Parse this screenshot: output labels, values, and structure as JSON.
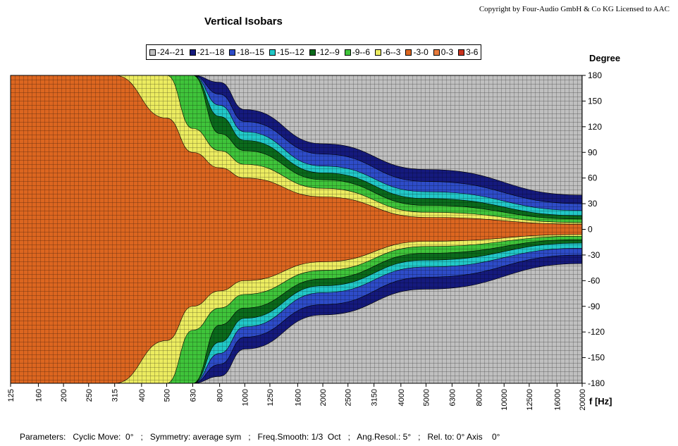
{
  "header": {
    "title": "Vertical Isobars",
    "copyright": "Copyright by Four-Audio GmbH & Co KG   Licensed to AAC"
  },
  "legend": [
    {
      "label": "-24--21",
      "color": "#c0c0c0"
    },
    {
      "label": "-21--18",
      "color": "#151a7d"
    },
    {
      "label": "-18--15",
      "color": "#2e4cc8"
    },
    {
      "label": "-15--12",
      "color": "#22c8c8"
    },
    {
      "label": "-12--9",
      "color": "#0b6a1c"
    },
    {
      "label": "-9--6",
      "color": "#3fc43a"
    },
    {
      "label": "-6--3",
      "color": "#ecec60"
    },
    {
      "label": "-3-0",
      "color": "#dc6620"
    },
    {
      "label": "0-3",
      "color": "#e87b3c"
    },
    {
      "label": "3-6",
      "color": "#c8321e"
    }
  ],
  "chart_data": {
    "type": "heatmap",
    "title": "Vertical Isobars",
    "xlabel": "f [Hz]",
    "ylabel": "Degree",
    "x_scale": "log",
    "xlim": [
      125,
      20000
    ],
    "ylim": [
      -180,
      180
    ],
    "x_ticks": [
      "125",
      "160",
      "200",
      "250",
      "315",
      "400",
      "500",
      "630",
      "800",
      "1000",
      "1250",
      "1600",
      "2000",
      "2500",
      "3150",
      "4000",
      "5000",
      "6300",
      "8000",
      "10000",
      "12500",
      "16000",
      "20000"
    ],
    "y_ticks": [
      "180",
      "150",
      "120",
      "90",
      "60",
      "30",
      "0",
      "-30",
      "-60",
      "-90",
      "-120",
      "-150",
      "-180"
    ],
    "grid": true,
    "symmetric": true,
    "approx_band_extent_deg": [
      {
        "f": 125,
        "-3-0": 180
      },
      {
        "f": 315,
        "-3-0": 180
      },
      {
        "f": 500,
        "-3-0": 130,
        "-6--3": 180
      },
      {
        "f": 630,
        "-3-0": 90,
        "-6--3": 118,
        "-9--6": 180
      },
      {
        "f": 800,
        "-3-0": 72,
        "-6--3": 92,
        "-9--6": 112,
        "-12--9": 132,
        "-15--12": 145,
        "-18--15": 158,
        "-21--18": 172,
        "-24--21": 180
      },
      {
        "f": 1000,
        "-3-0": 60,
        "-6--3": 76,
        "-9--6": 92,
        "-12--9": 104,
        "-15--12": 114,
        "-18--15": 126,
        "-21--18": 140,
        "-24--21": 180
      },
      {
        "f": 2000,
        "-3-0": 38,
        "-6--3": 48,
        "-9--6": 58,
        "-12--9": 66,
        "-15--12": 74,
        "-18--15": 88,
        "-21--18": 100,
        "-24--21": 180
      },
      {
        "f": 5000,
        "-3-0": 14,
        "-6--3": 20,
        "-9--6": 28,
        "-12--9": 36,
        "-15--12": 44,
        "-18--15": 56,
        "-21--18": 70,
        "-24--21": 180
      },
      {
        "f": 20000,
        "-3-0": 6,
        "-6--3": 8,
        "-9--6": 12,
        "-12--9": 16,
        "-15--12": 22,
        "-18--15": 30,
        "-21--18": 40,
        "-24--21": 180
      }
    ]
  },
  "params": {
    "text": "Parameters:   Cyclic Move:  0°   ;   Symmetry: average sym   ;   Freq.Smooth: 1/3  Oct   ;   Ang.Resol.: 5°   ;   Rel. to: 0° Axis    0°"
  }
}
